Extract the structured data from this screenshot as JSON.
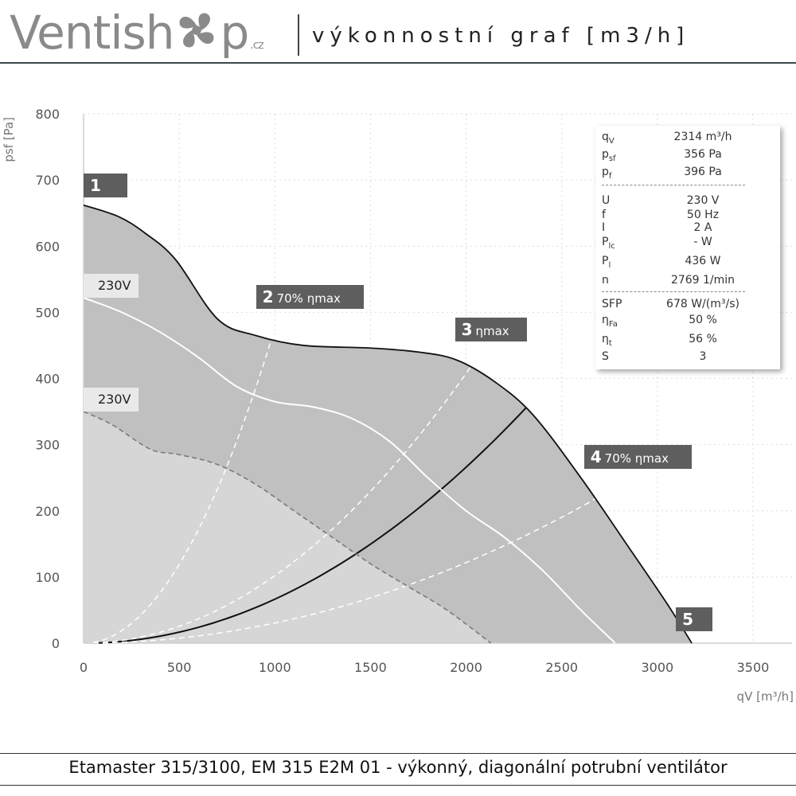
{
  "header": {
    "logo_left": "Ventish",
    "logo_right": "p",
    "logo_suffix": ".cz",
    "title": "výkonnostní graf [m3/h]"
  },
  "footer": {
    "text": "Etamaster 315/3100, EM 315 E2M 01 - výkonný, diagonální potrubní ventilátor"
  },
  "colors": {
    "envelope_fill": "#c0c0c0",
    "inner_fill": "#d6d6d6",
    "curve": "#111111",
    "grid": "#dddddd",
    "callout": "#5e5e5e"
  },
  "info_panel": {
    "rows": [
      {
        "key": "q",
        "sub": "V",
        "value": "2314 m³/h"
      },
      {
        "key": "p",
        "sub": "sf",
        "value": "356 Pa"
      },
      {
        "key": "p",
        "sub": "f",
        "value": "396 Pa"
      },
      {
        "key": "U",
        "sub": "",
        "value": "230 V"
      },
      {
        "key": "f",
        "sub": "",
        "value": "50 Hz"
      },
      {
        "key": "I",
        "sub": "",
        "value": "2 A"
      },
      {
        "key": "P",
        "sub": "lc",
        "value": "- W"
      },
      {
        "key": "P",
        "sub": "l",
        "value": "436 W"
      },
      {
        "key": "n",
        "sub": "",
        "value": "2769 1/min"
      },
      {
        "key": "SFP",
        "sub": "",
        "value": "678 W/(m³/s)"
      },
      {
        "key": "η",
        "sub": "Fa",
        "value": "50 %"
      },
      {
        "key": "η",
        "sub": "t",
        "value": "56 %"
      },
      {
        "key": "S",
        "sub": "",
        "value": "3"
      }
    ]
  },
  "chart_data": {
    "type": "line",
    "xlabel": "qV [m³/h]",
    "ylabel": "psf [Pa]",
    "xlim": [
      0,
      3600
    ],
    "ylim": [
      0,
      800
    ],
    "xticks": [
      0,
      500,
      1000,
      1500,
      2000,
      2500,
      3000,
      3500
    ],
    "yticks": [
      0,
      100,
      200,
      300,
      400,
      500,
      600,
      700,
      800
    ],
    "grid": true,
    "series": [
      {
        "name": "max",
        "style": "solid-black",
        "x": [
          0,
          180,
          320,
          480,
          700,
          900,
          1150,
          1500,
          1750,
          1950,
          2150,
          2350,
          2600,
          2850,
          3050,
          3180
        ],
        "y": [
          662,
          645,
          620,
          580,
          490,
          465,
          450,
          446,
          440,
          428,
          395,
          345,
          250,
          145,
          60,
          0
        ]
      },
      {
        "name": "230V",
        "style": "solid-white",
        "x": [
          0,
          200,
          400,
          600,
          800,
          1000,
          1200,
          1400,
          1600,
          1800,
          2000,
          2200,
          2400,
          2600,
          2780
        ],
        "y": [
          522,
          500,
          470,
          432,
          388,
          365,
          357,
          340,
          305,
          250,
          200,
          160,
          110,
          50,
          0
        ]
      },
      {
        "name": "230V",
        "style": "dashed-gray",
        "x": [
          0,
          150,
          350,
          500,
          700,
          900,
          1100,
          1300,
          1500,
          1700,
          1900,
          2130
        ],
        "y": [
          350,
          330,
          293,
          285,
          270,
          240,
          200,
          160,
          120,
          85,
          50,
          0
        ]
      }
    ],
    "system_curves": [
      {
        "style": "solid-black",
        "to": [
          2314,
          356
        ]
      },
      {
        "style": "dashed-white",
        "to": [
          985,
          462
        ]
      },
      {
        "style": "dashed-white",
        "to": [
          2025,
          418
        ]
      },
      {
        "style": "dashed-white",
        "to": [
          2700,
          222
        ]
      }
    ],
    "tags": [
      "230V",
      "230V"
    ],
    "points": [
      {
        "id": "1",
        "label": "",
        "x": 0,
        "y": 662
      },
      {
        "id": "2",
        "label": "70% ηmax",
        "x": 985,
        "y": 462
      },
      {
        "id": "3",
        "label": "ηmax",
        "x": 2025,
        "y": 418
      },
      {
        "id": "4",
        "label": "70% ηmax",
        "x": 2700,
        "y": 222
      },
      {
        "id": "5",
        "label": "",
        "x": 3180,
        "y": 0
      }
    ]
  }
}
